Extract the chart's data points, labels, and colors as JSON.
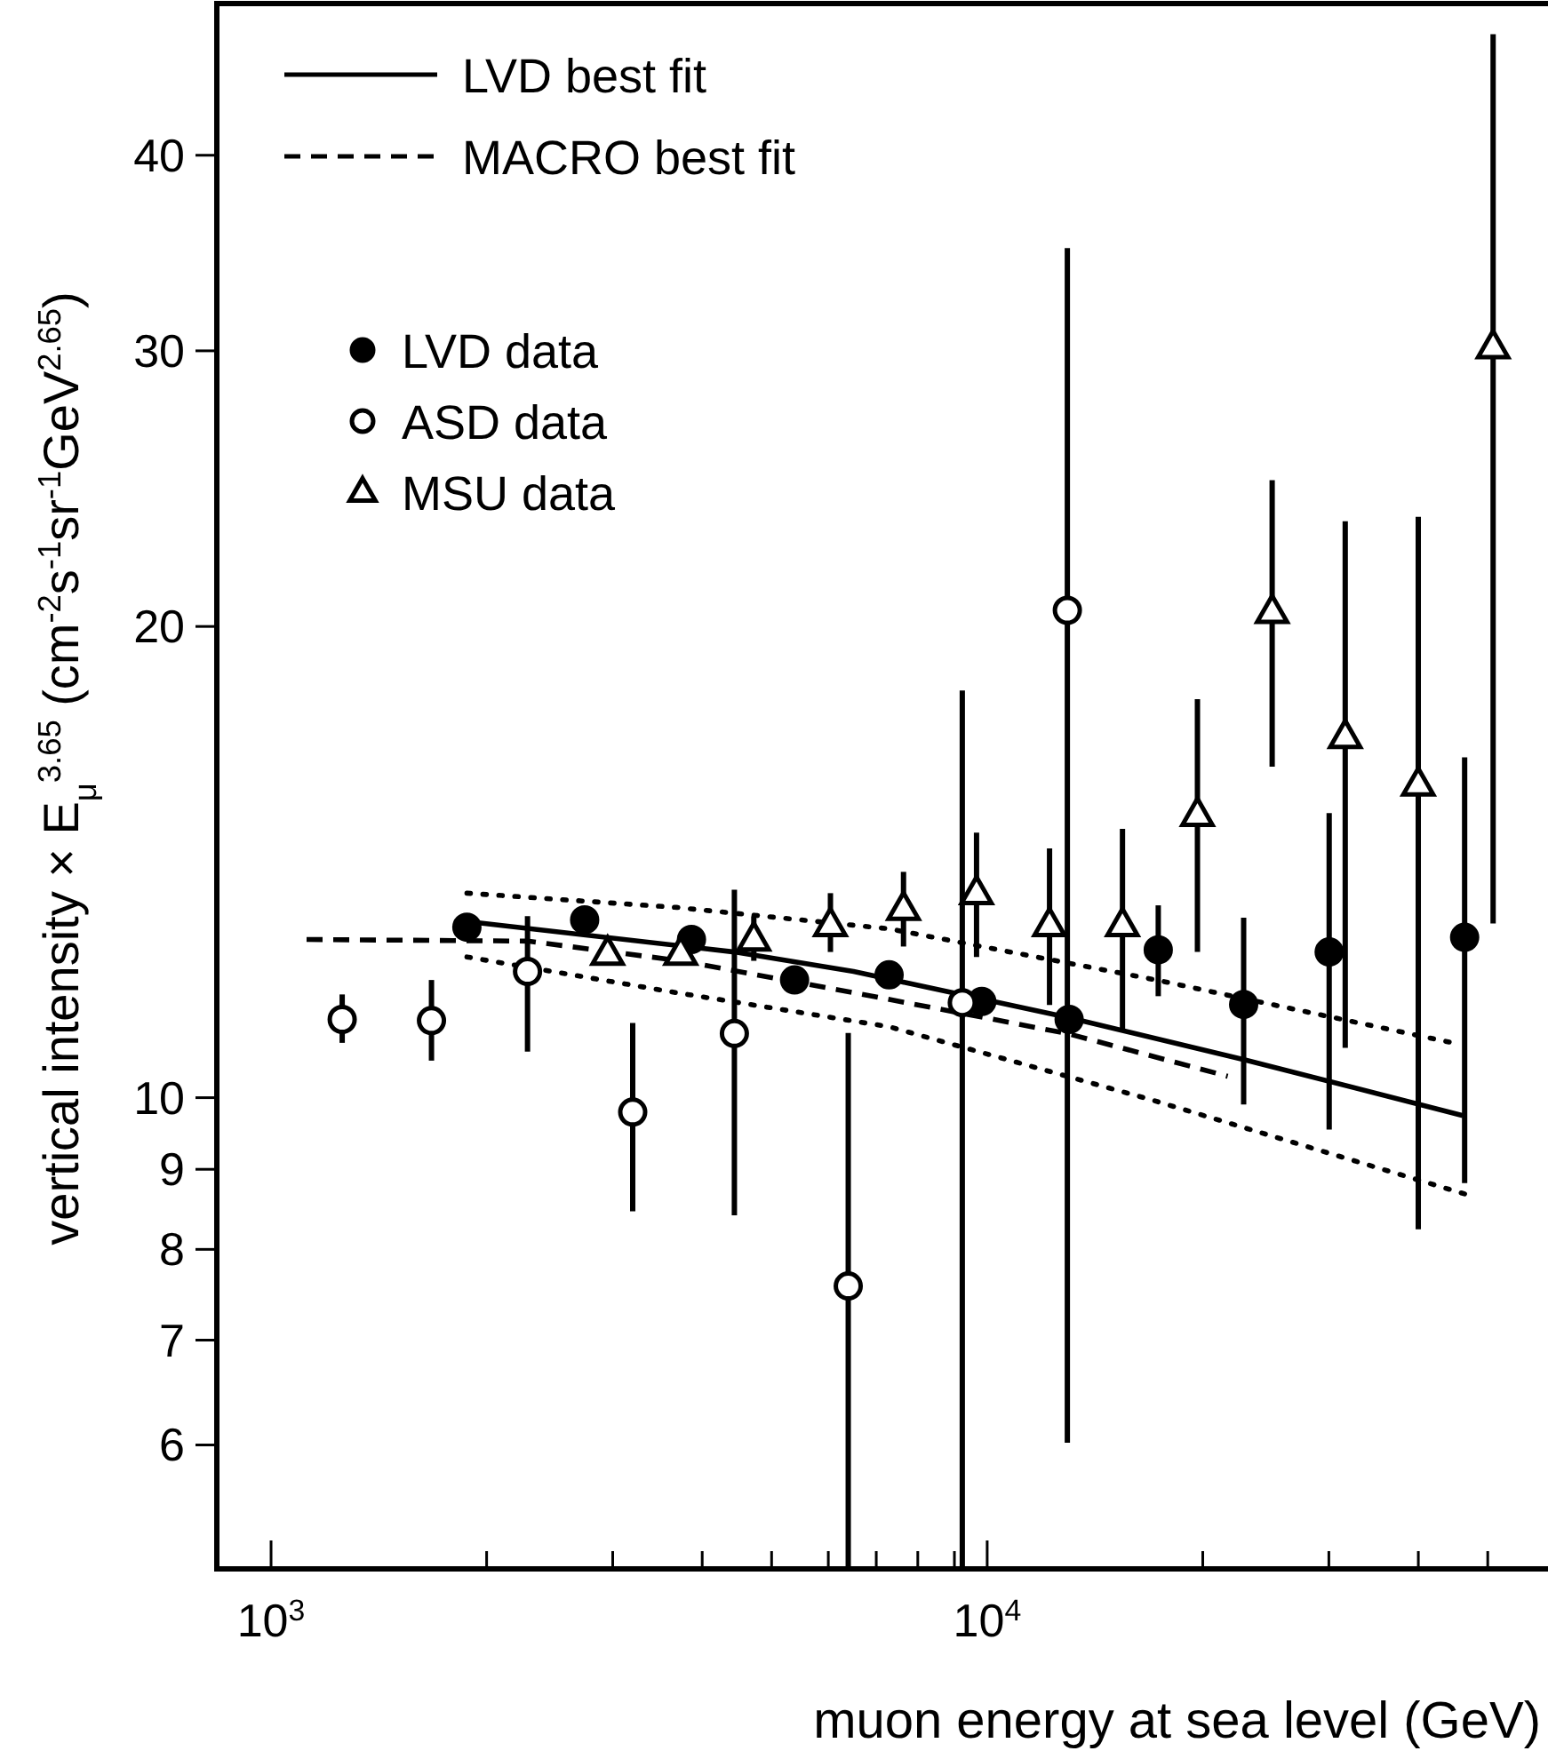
{
  "chart_data": {
    "type": "scatter",
    "xlabel": "muon energy at sea level (GeV)",
    "ylabel": "vertical intensity × E$_{μ}$$^{3.65}$   (cm$^{-2}$s$^{-1}$sr$^{-1}$GeV$^{2.65}$)",
    "log": "xy",
    "xlim": [
      840,
      60000
    ],
    "ylim": [
      5,
      50
    ],
    "xticks": [
      {
        "value": 1000,
        "label": "10$^{3}$"
      },
      {
        "value": 2000,
        "label": null
      },
      {
        "value": 3000,
        "label": null
      },
      {
        "value": 4000,
        "label": null
      },
      {
        "value": 5000,
        "label": null
      },
      {
        "value": 6000,
        "label": null
      },
      {
        "value": 7000,
        "label": null
      },
      {
        "value": 8000,
        "label": null
      },
      {
        "value": 9000,
        "label": null
      },
      {
        "value": 10000,
        "label": "10$^{4}$"
      },
      {
        "value": 20000,
        "label": null
      },
      {
        "value": 30000,
        "label": null
      },
      {
        "value": 40000,
        "label": null
      },
      {
        "value": 50000,
        "label": null
      }
    ],
    "yticks": [
      6,
      7,
      8,
      9,
      10,
      20,
      30,
      40
    ],
    "grid": false,
    "legend": "top left",
    "series": [
      {
        "name": "LVD best fit",
        "type": "line",
        "line_style": "solid",
        "color": "#000000",
        "x": [
          1877,
          4436,
          6508,
          13000,
          22960,
          46150
        ],
        "values": [
          12.96,
          12.39,
          12.04,
          11.25,
          10.57,
          9.74
        ]
      },
      {
        "name": "MACRO best fit",
        "type": "line",
        "line_style": "dashed",
        "color": "#000000",
        "x": [
          1121,
          2281,
          3733,
          6508,
          12940,
          21670
        ],
        "values": [
          12.62,
          12.59,
          12.23,
          11.67,
          10.99,
          10.32
        ]
      },
      {
        "type": "line",
        "line_style": "dotted",
        "color": "#000000",
        "x": [
          1877,
          3683,
          7295,
          17230,
          45530
        ],
        "values": [
          13.51,
          13.23,
          12.82,
          11.89,
          10.82
        ]
      },
      {
        "type": "line",
        "line_style": "dotted",
        "color": "#000000",
        "x": [
          1877,
          3683,
          7295,
          16940,
          46420
        ],
        "values": [
          12.3,
          11.67,
          11.1,
          9.97,
          8.68
        ]
      },
      {
        "name": "LVD data",
        "marker": "circle",
        "color": "#000000",
        "x": [
          1877,
          2741,
          3864,
          5383,
          7295,
          9829,
          13015,
          17333,
          22810,
          30030,
          46420
        ],
        "values": [
          12.85,
          12.99,
          12.62,
          11.89,
          11.98,
          11.52,
          11.22,
          12.43,
          11.47,
          12.39,
          12.66
        ],
        "errors": [
          null,
          null,
          null,
          null,
          null,
          null,
          null,
          [
            11.61,
            13.27
          ],
          [
            9.9,
            13.03
          ],
          [
            9.54,
            15.2
          ],
          [
            8.82,
            16.5
          ]
        ]
      },
      {
        "name": "ASD data",
        "marker": "circle",
        "color": "#ffffff",
        "x": [
          1257,
          1675,
          2281,
          3199,
          4436,
          6397,
          9231,
          12940
        ],
        "values": [
          11.22,
          11.2,
          12.04,
          9.79,
          10.99,
          7.58,
          11.5,
          20.48
        ],
        "errors": [
          [
            10.84,
            11.64
          ],
          [
            10.56,
            11.89
          ],
          [
            10.7,
            13.06
          ],
          [
            8.46,
            11.16
          ],
          [
            8.41,
            13.58
          ],
          [
            5,
            11.0
          ],
          [
            5,
            18.2
          ],
          [
            6.02,
            34.9
          ]
        ]
      },
      {
        "name": "MSU data",
        "marker": "triangle",
        "color": "#ffffff",
        "x": [
          2951,
          3733,
          4722,
          6041,
          7641,
          9663,
          12220,
          15450,
          19660,
          25000,
          31620,
          39990,
          50870
        ],
        "values": [
          12.36,
          12.36,
          12.62,
          12.89,
          13.2,
          13.51,
          12.89,
          12.89,
          15.16,
          20.43,
          17.0,
          15.85,
          30.16
        ],
        "errors": [
          null,
          null,
          [
            12.23,
            13.06
          ],
          [
            12.39,
            13.51
          ],
          [
            12.49,
            13.94
          ],
          [
            12.3,
            14.77
          ],
          [
            11.46,
            14.43
          ],
          [
            11.02,
            14.85
          ],
          [
            12.39,
            17.97
          ],
          [
            16.27,
            24.8
          ],
          [
            10.76,
            23.35
          ],
          [
            8.24,
            23.5
          ],
          [
            12.92,
            47.8
          ]
        ]
      }
    ]
  }
}
